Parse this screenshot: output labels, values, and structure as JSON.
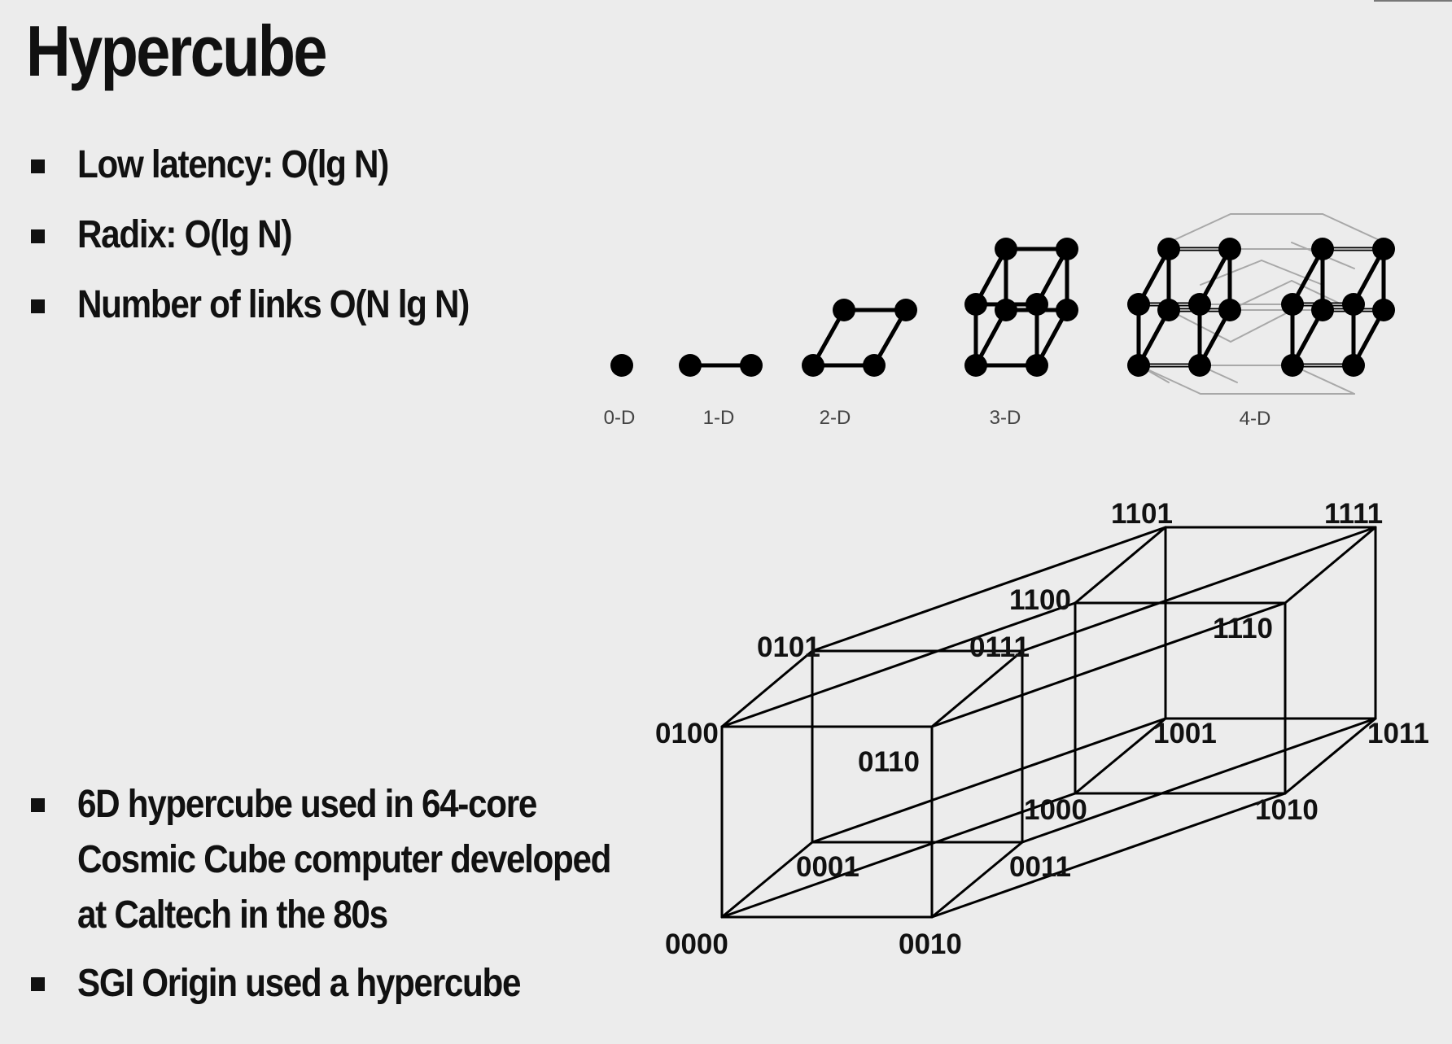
{
  "slide": {
    "title": "Hypercube",
    "top_bullets": [
      {
        "text": "Low latency: O(lg N)"
      },
      {
        "text": "Radix: O(lg N)"
      },
      {
        "text": "Number of links O(N lg N)"
      }
    ],
    "bottom_bullets": [
      {
        "lines": [
          "6D hypercube used in 64-core",
          "Cosmic Cube computer developed",
          "at Caltech in the 80s"
        ]
      },
      {
        "lines": [
          "SGI Origin used a hypercube"
        ]
      }
    ]
  },
  "dimension_diagrams": {
    "labels": [
      "0-D",
      "1-D",
      "2-D",
      "3-D",
      "4-D"
    ]
  },
  "hypercube_4d": {
    "node_labels": {
      "n0000": "0000",
      "n0001": "0001",
      "n0010": "0010",
      "n0011": "0011",
      "n0100": "0100",
      "n0101": "0101",
      "n0110": "0110",
      "n0111": "0111",
      "n1000": "1000",
      "n1001": "1001",
      "n1010": "1010",
      "n1011": "1011",
      "n1100": "1100",
      "n1101": "1101",
      "n1110": "1110",
      "n1111": "1111"
    }
  },
  "colors": {
    "background": "#ececec",
    "text": "#111111",
    "node_fill": "#000000",
    "faint_edge": "#a8a8a8"
  }
}
